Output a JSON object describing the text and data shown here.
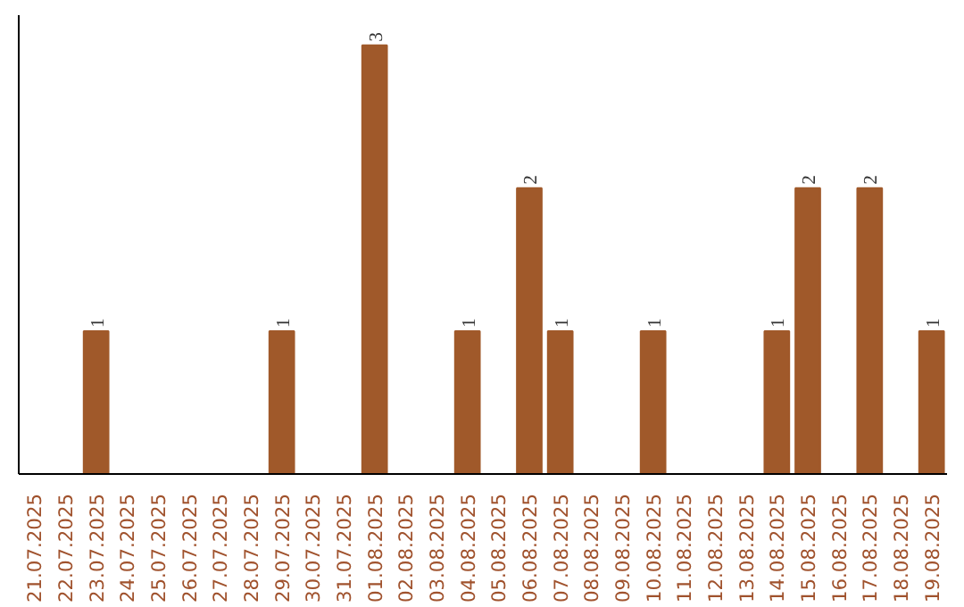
{
  "chart_data": {
    "type": "bar",
    "categories": [
      "21.07.2025",
      "22.07.2025",
      "23.07.2025",
      "24.07.2025",
      "25.07.2025",
      "26.07.2025",
      "27.07.2025",
      "28.07.2025",
      "29.07.2025",
      "30.07.2025",
      "31.07.2025",
      "01.08.2025",
      "02.08.2025",
      "03.08.2025",
      "04.08.2025",
      "05.08.2025",
      "06.08.2025",
      "07.08.2025",
      "08.08.2025",
      "09.08.2025",
      "10.08.2025",
      "11.08.2025",
      "12.08.2025",
      "13.08.2025",
      "14.08.2025",
      "15.08.2025",
      "16.08.2025",
      "17.08.2025",
      "18.08.2025",
      "19.08.2025"
    ],
    "values": [
      0,
      0,
      1,
      0,
      0,
      0,
      0,
      0,
      1,
      0,
      0,
      3,
      0,
      0,
      1,
      0,
      2,
      1,
      0,
      0,
      1,
      0,
      0,
      0,
      1,
      2,
      0,
      2,
      0,
      1
    ],
    "value_labels": [
      null,
      null,
      "1",
      null,
      null,
      null,
      null,
      null,
      "1",
      null,
      null,
      "3",
      null,
      null,
      "1",
      null,
      "2",
      "1",
      null,
      null,
      "1",
      null,
      null,
      null,
      "1",
      "2",
      null,
      "2",
      null,
      "1"
    ],
    "color": "#a0592a",
    "grid": false,
    "tick_labels": "x"
  }
}
